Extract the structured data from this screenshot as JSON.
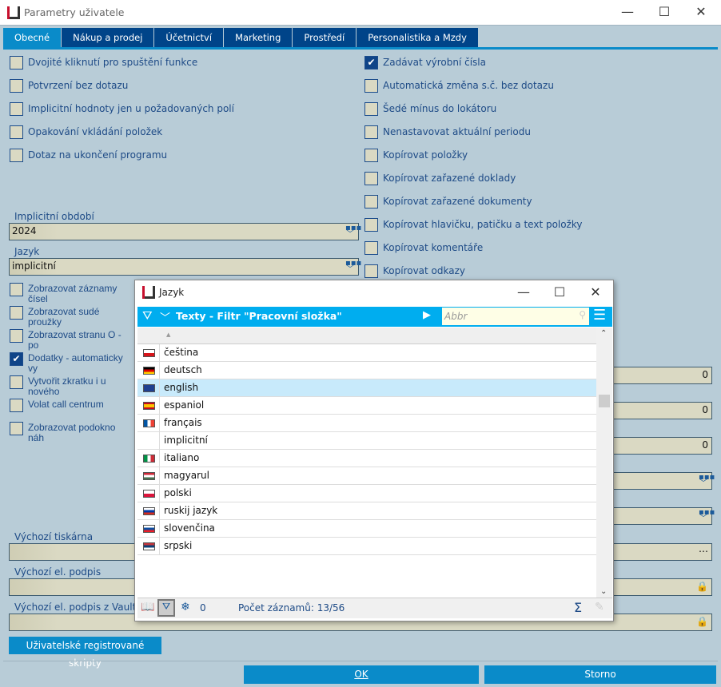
{
  "window": {
    "title": "Parametry uživatele",
    "logo": "K2",
    "minimize": "—",
    "maximize": "☐",
    "close": "✕"
  },
  "tabs": [
    {
      "label": "Obecné",
      "active": true
    },
    {
      "label": "Nákup a prodej"
    },
    {
      "label": "Účetnictví"
    },
    {
      "label": "Marketing"
    },
    {
      "label": "Prostředí"
    },
    {
      "label": "Personalistika a Mzdy"
    }
  ],
  "left_checks": [
    {
      "label": "Dvojité kliknutí pro spuštění funkce",
      "checked": false
    },
    {
      "label": "Potvrzení bez dotazu",
      "checked": false
    },
    {
      "label": "Implicitní hodnoty jen u požadovaných polí",
      "checked": false
    },
    {
      "label": "Opakování vkládání položek",
      "checked": false
    },
    {
      "label": "Dotaz na ukončení programu",
      "checked": false
    }
  ],
  "right_checks": [
    {
      "label": "Zadávat výrobní čísla",
      "checked": true
    },
    {
      "label": "Automatická změna s.č. bez dotazu",
      "checked": false
    },
    {
      "label": "Šedé mínus do lokátoru",
      "checked": false
    },
    {
      "label": "Nenastavovat aktuální periodu",
      "checked": false
    },
    {
      "label": "Kopírovat položky",
      "checked": false
    },
    {
      "label": "Kopírovat zařazené doklady",
      "checked": false
    },
    {
      "label": "Kopírovat zařazené dokumenty",
      "checked": false
    },
    {
      "label": "Kopírovat hlavičku, patičku a text položky",
      "checked": false
    },
    {
      "label": "Kopírovat komentáře",
      "checked": false
    },
    {
      "label": "Kopírovat odkazy",
      "checked": false
    }
  ],
  "period": {
    "label": "Implicitní období",
    "value": "2024"
  },
  "language": {
    "label": "Jazyk",
    "value": "implicitní"
  },
  "left_checks2": [
    {
      "label": "Zobrazovat záznamy čísel",
      "checked": false
    },
    {
      "label": "Zobrazovat sudé proužky",
      "checked": false
    },
    {
      "label": "Zobrazovat stranu O - po",
      "checked": false
    },
    {
      "label": "Dodatky - automaticky vy",
      "checked": true
    },
    {
      "label": "Vytvořit zkratku i u nového",
      "checked": false
    },
    {
      "label": "Volat call centrum",
      "checked": false
    },
    {
      "label": "Zobrazovat podokno náh",
      "checked": false
    }
  ],
  "right_fields": [
    "0",
    "0",
    "0"
  ],
  "printer": {
    "label": "Výchozí tiskárna",
    "value": "",
    "button": "⋯"
  },
  "esign": {
    "label": "Výchozí el. podpis",
    "value": ""
  },
  "esign_vault": {
    "label": "Výchozí el. podpis z Vault",
    "value": ""
  },
  "scripts_button": "Uživatelské registrované skripty",
  "ok_button": "OK",
  "cancel_button": "Storno",
  "popup": {
    "title": "Jazyk",
    "bar_title": "Texty - Filtr \"Pracovní složka\"",
    "search_placeholder": "Abbr",
    "sort_indicator": "▲",
    "rows": [
      {
        "label": "čeština",
        "flag": "cz"
      },
      {
        "label": "deutsch",
        "flag": "de"
      },
      {
        "label": "english",
        "flag": "gb",
        "selected": true
      },
      {
        "label": "espaniol",
        "flag": "es"
      },
      {
        "label": "français",
        "flag": "fr"
      },
      {
        "label": "implicitní",
        "flag": ""
      },
      {
        "label": "italiano",
        "flag": "it"
      },
      {
        "label": "magyarul",
        "flag": "hu"
      },
      {
        "label": "polski",
        "flag": "pl"
      },
      {
        "label": "ruskij jazyk",
        "flag": "ru"
      },
      {
        "label": "slovenčina",
        "flag": "sk"
      },
      {
        "label": "srpski",
        "flag": "rs"
      }
    ],
    "footer": {
      "count_zero": "0",
      "records": "Počet záznamů: 13/56",
      "sigma": "Σ"
    }
  },
  "colors": {
    "accent": "#0a8bc9",
    "tab": "#004489",
    "bar": "#00adef",
    "field": "#dad9c3"
  }
}
